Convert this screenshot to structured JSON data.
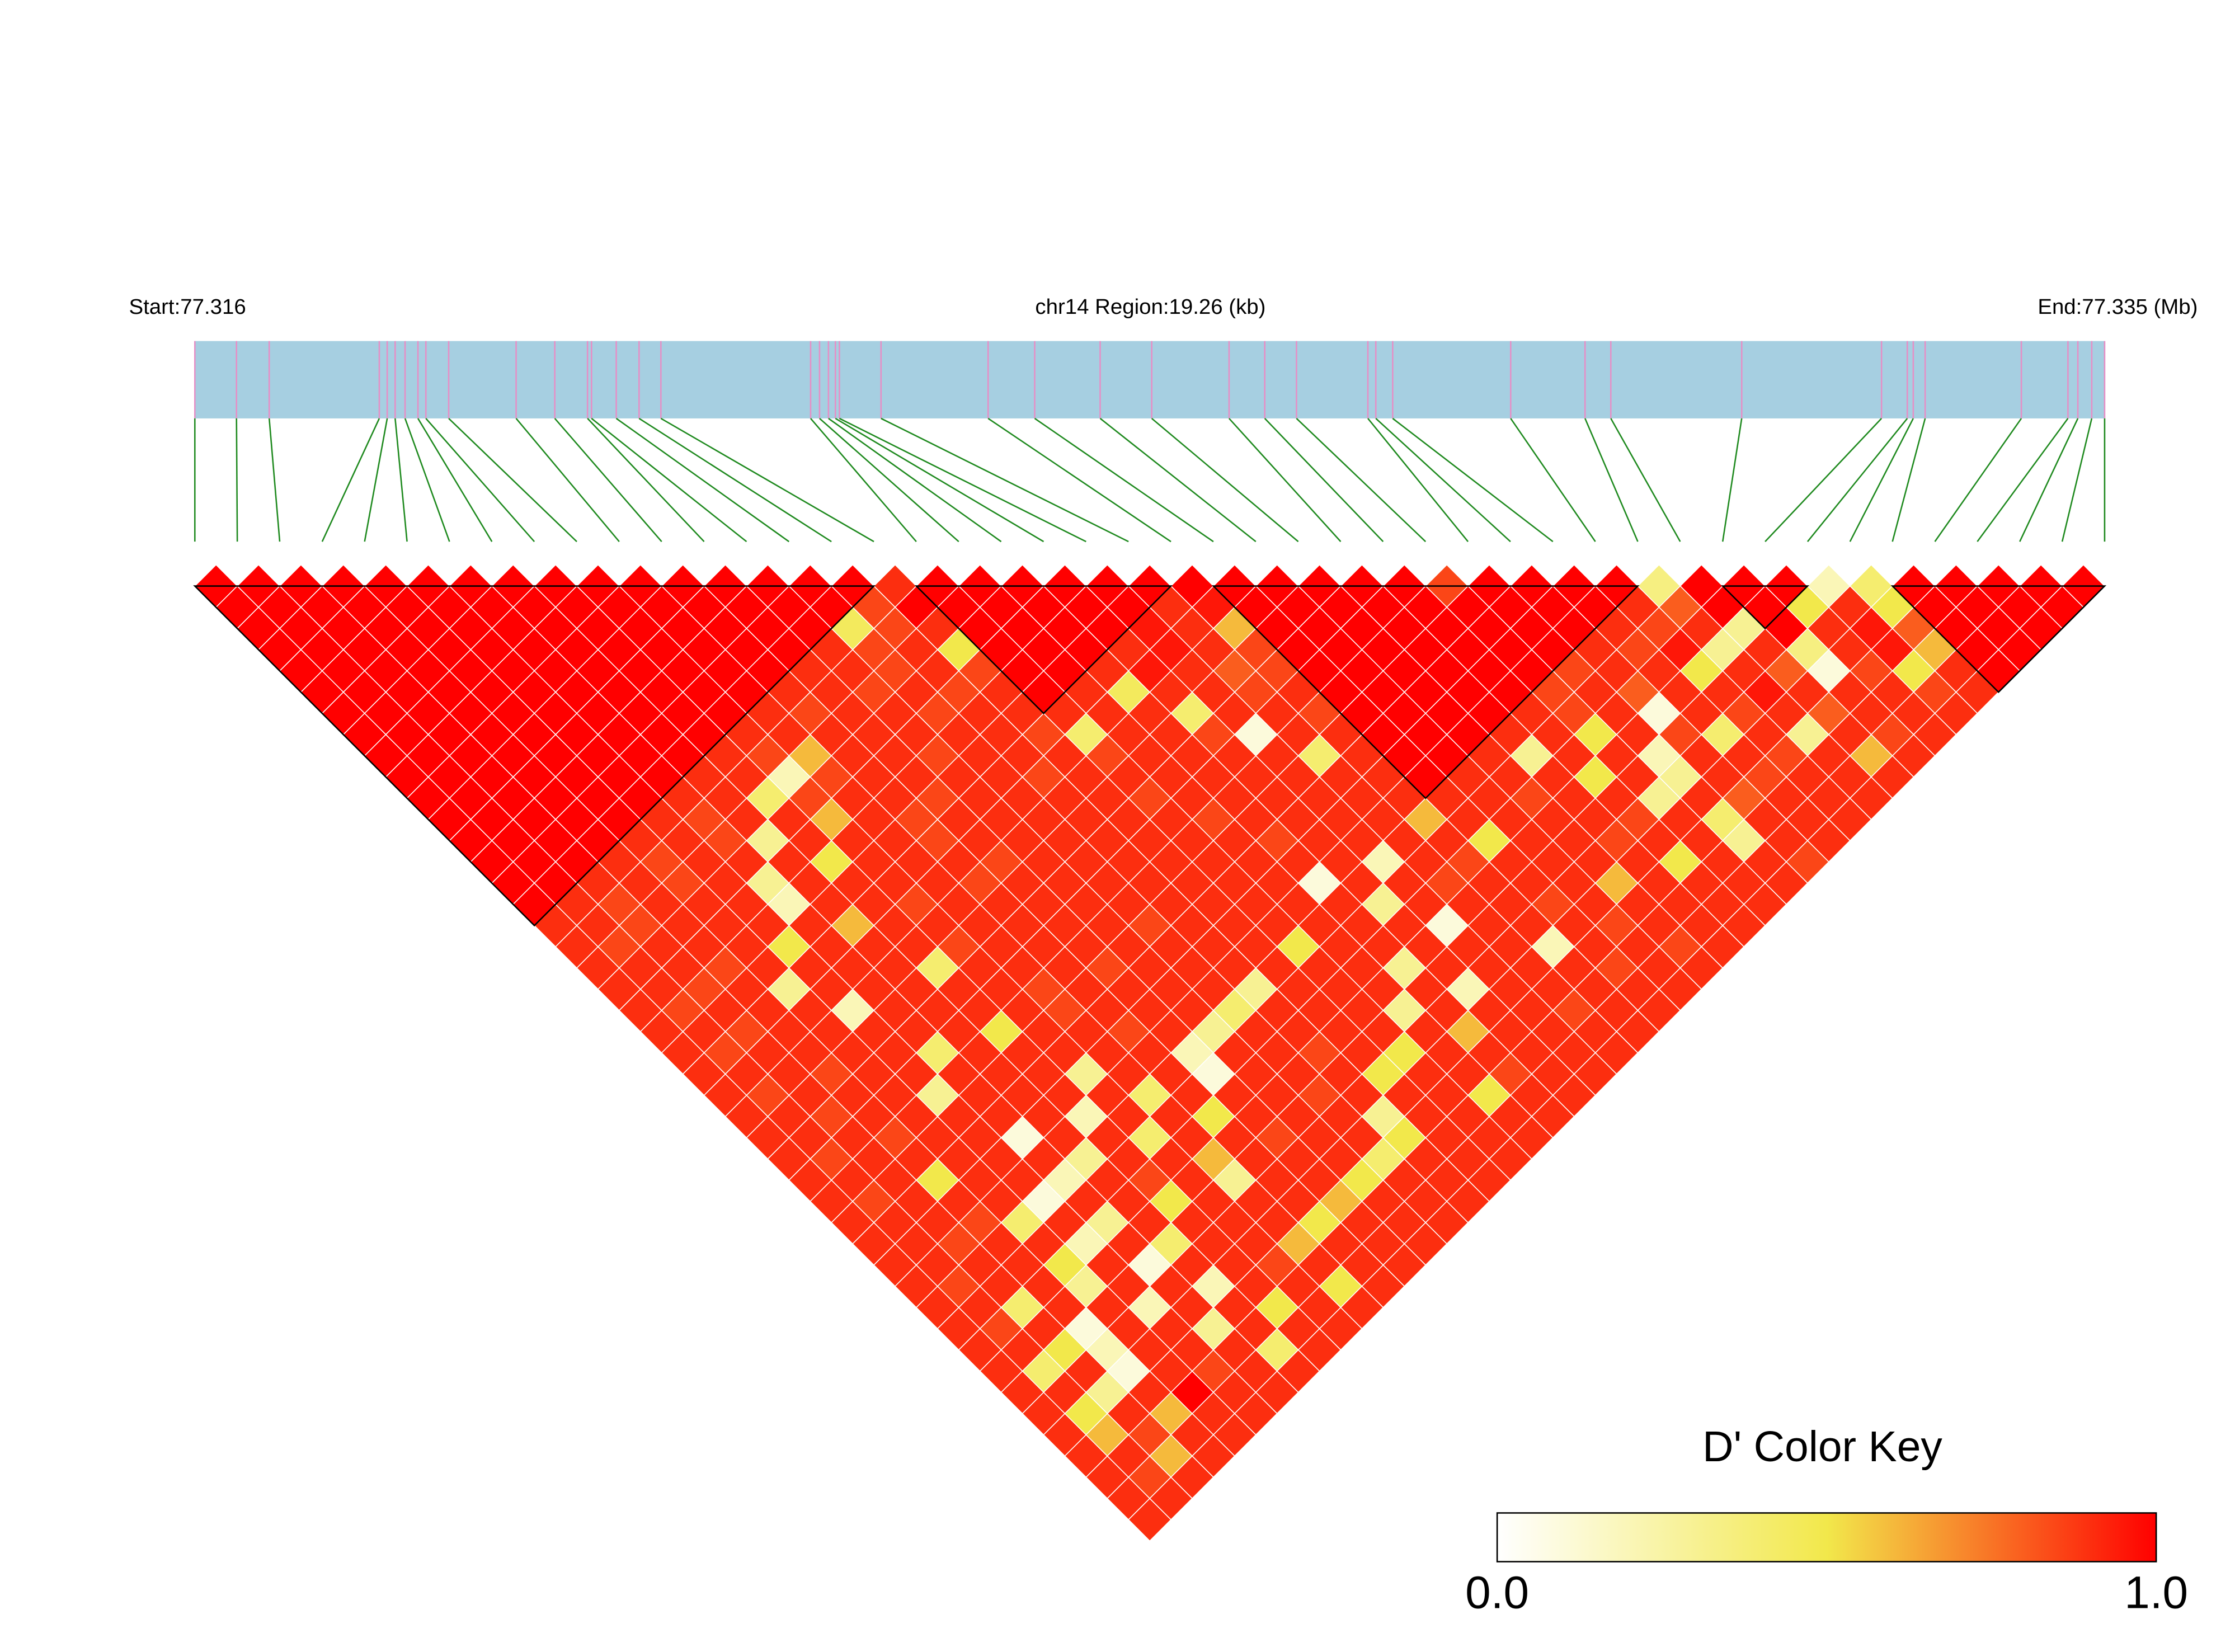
{
  "chart_data": {
    "type": "heatmap",
    "title": "chr14 Region:19.26 (kb)",
    "start_label": "Start:77.316",
    "end_label": "End:77.335 (Mb)",
    "xlim": [
      0,
      19.26
    ],
    "snp_positions_kb": [
      0,
      0.42,
      0.75,
      1.86,
      1.94,
      2.02,
      2.12,
      2.25,
      2.33,
      2.56,
      3.24,
      3.63,
      3.96,
      4.0,
      4.25,
      4.48,
      4.7,
      6.21,
      6.3,
      6.39,
      6.46,
      6.5,
      6.92,
      8.0,
      8.47,
      9.13,
      9.65,
      10.43,
      10.79,
      11.11,
      11.83,
      11.91,
      12.08,
      13.27,
      14.02,
      14.28,
      15.6,
      17.01,
      17.27,
      17.33,
      17.45,
      18.42,
      18.89,
      18.99,
      19.13,
      19.26
    ],
    "ld_rows": [
      [
        1,
        1,
        1,
        1,
        1,
        1,
        1,
        1,
        1,
        1,
        1,
        1,
        1,
        1,
        1,
        1,
        0.9,
        1,
        1,
        1,
        1,
        1,
        1,
        1,
        1,
        1,
        1,
        1,
        1,
        0.85,
        1,
        1,
        1,
        1,
        0.35,
        1,
        1,
        1,
        0.2,
        0.4,
        1,
        1,
        1,
        1,
        1
      ],
      [
        1,
        1,
        1,
        1,
        1,
        1,
        1,
        1,
        1,
        1,
        1,
        1,
        1,
        1,
        1,
        0.85,
        1,
        1,
        1,
        1,
        1,
        1,
        0.9,
        0.95,
        1,
        1,
        1,
        1,
        1,
        1,
        1,
        1,
        1,
        0.9,
        0.8,
        1,
        1,
        0.5,
        0.9,
        0.5,
        1,
        1,
        1,
        1
      ],
      [
        1,
        1,
        1,
        1,
        1,
        1,
        1,
        1,
        1,
        1,
        1,
        1,
        1,
        1,
        0.45,
        0.85,
        0.9,
        1,
        1,
        1,
        1,
        0.95,
        0.9,
        0.6,
        1,
        1,
        1,
        1,
        1,
        1,
        1,
        1,
        0.9,
        0.85,
        0.9,
        0.3,
        1,
        0.9,
        0.95,
        0.8,
        1,
        1,
        1
      ],
      [
        1,
        1,
        1,
        1,
        1,
        1,
        1,
        1,
        1,
        1,
        1,
        1,
        1,
        0.9,
        0.85,
        0.9,
        0.5,
        1,
        1,
        1,
        0.9,
        0.95,
        0.9,
        0.85,
        1,
        1,
        1,
        1,
        1,
        1,
        1,
        0.9,
        0.85,
        0.95,
        0.3,
        0.9,
        0.35,
        0.9,
        0.95,
        0.6,
        1,
        1
      ],
      [
        1,
        1,
        1,
        1,
        1,
        1,
        1,
        1,
        1,
        1,
        1,
        1,
        0.9,
        0.9,
        0.85,
        0.9,
        0.85,
        1,
        1,
        0.9,
        0.95,
        0.9,
        0.8,
        0.85,
        1,
        1,
        1,
        1,
        1,
        1,
        0.85,
        0.9,
        0.9,
        0.5,
        0.9,
        0.8,
        0.1,
        0.85,
        0.5,
        0.9,
        1
      ],
      [
        1,
        1,
        1,
        1,
        1,
        1,
        1,
        1,
        1,
        1,
        1,
        0.9,
        0.9,
        0.85,
        0.9,
        0.85,
        0.9,
        1,
        0.9,
        0.45,
        0.9,
        0.9,
        0.85,
        0.9,
        1,
        1,
        1,
        1,
        1,
        0.85,
        0.9,
        0.8,
        0.9,
        0.9,
        0.95,
        0.9,
        0.9,
        0.9,
        0.85,
        0.9
      ],
      [
        1,
        1,
        1,
        1,
        1,
        1,
        1,
        1,
        1,
        1,
        0.9,
        0.85,
        0.9,
        0.9,
        0.85,
        0.9,
        0.9,
        0.9,
        0.9,
        0.9,
        0.4,
        0.9,
        0.9,
        0.85,
        1,
        1,
        1,
        1,
        0.9,
        0.85,
        0.9,
        0.1,
        0.9,
        0.85,
        0.9,
        0.8,
        0.9,
        0.9,
        0.9
      ],
      [
        1,
        1,
        1,
        1,
        1,
        1,
        1,
        1,
        1,
        0.9,
        0.9,
        0.9,
        0.9,
        0.9,
        0.9,
        0.9,
        0.85,
        0.4,
        0.9,
        0.9,
        0.85,
        0.1,
        0.9,
        0.9,
        1,
        1,
        1,
        0.9,
        0.9,
        0.5,
        0.9,
        0.85,
        0.4,
        0.9,
        0.3,
        0.9,
        0.85,
        0.9
      ],
      [
        1,
        1,
        1,
        1,
        1,
        1,
        1,
        1,
        0.9,
        0.85,
        0.6,
        0.9,
        0.9,
        0.85,
        0.9,
        0.9,
        0.9,
        0.85,
        0.9,
        0.9,
        0.9,
        0.9,
        0.4,
        0.9,
        1,
        1,
        0.9,
        0.3,
        0.9,
        0.9,
        0.2,
        0.9,
        0.9,
        0.85,
        0.9,
        0.6,
        0.9
      ],
      [
        1,
        1,
        1,
        1,
        1,
        1,
        1,
        0.9,
        0.9,
        0.2,
        0.85,
        0.9,
        0.9,
        0.9,
        0.9,
        0.85,
        0.9,
        0.9,
        0.9,
        0.9,
        0.9,
        0.9,
        0.9,
        0.9,
        1,
        0.9,
        0.9,
        0.9,
        0.5,
        0.9,
        0.3,
        0.9,
        0.85,
        0.9,
        0.9,
        0.9
      ],
      [
        1,
        1,
        1,
        1,
        1,
        1,
        0.9,
        0.9,
        0.4,
        0.85,
        0.9,
        0.9,
        0.85,
        0.9,
        0.9,
        0.9,
        0.9,
        0.85,
        0.9,
        0.9,
        0.9,
        0.9,
        0.9,
        0.9,
        0.9,
        0.9,
        0.85,
        0.9,
        0.9,
        0.3,
        0.9,
        0.8,
        0.9,
        0.9,
        0.9
      ],
      [
        1,
        1,
        1,
        1,
        1,
        0.9,
        0.85,
        0.9,
        0.9,
        0.6,
        0.9,
        0.85,
        0.9,
        0.9,
        0.9,
        0.9,
        0.9,
        0.9,
        0.85,
        0.9,
        0.9,
        0.9,
        0.9,
        0.6,
        0.9,
        0.9,
        0.9,
        0.9,
        0.85,
        0.9,
        0.4,
        0.9,
        0.9,
        0.9
      ],
      [
        1,
        1,
        1,
        1,
        0.9,
        0.9,
        0.85,
        0.3,
        0.9,
        0.9,
        0.9,
        0.85,
        0.9,
        0.9,
        0.9,
        0.9,
        0.9,
        0.9,
        0.9,
        0.85,
        0.9,
        0.9,
        0.9,
        0.9,
        0.5,
        0.9,
        0.9,
        0.85,
        0.9,
        0.9,
        0.3,
        0.9,
        0.9
      ],
      [
        1,
        1,
        1,
        0.9,
        0.85,
        0.9,
        0.9,
        0.9,
        0.5,
        0.9,
        0.9,
        0.9,
        0.85,
        0.9,
        0.9,
        0.9,
        0.9,
        0.9,
        0.9,
        0.9,
        0.9,
        0.2,
        0.9,
        0.85,
        0.9,
        0.9,
        0.9,
        0.9,
        0.5,
        0.9,
        0.9,
        0.85
      ],
      [
        1,
        1,
        0.9,
        0.9,
        0.85,
        0.9,
        0.3,
        0.9,
        0.9,
        0.9,
        0.9,
        0.85,
        0.9,
        0.9,
        0.9,
        0.9,
        0.9,
        0.9,
        0.9,
        0.1,
        0.9,
        0.9,
        0.85,
        0.9,
        0.9,
        0.9,
        0.6,
        0.9,
        0.9,
        0.9,
        0.9
      ],
      [
        1,
        0.9,
        0.85,
        0.9,
        0.9,
        0.9,
        0.2,
        0.9,
        0.9,
        0.85,
        0.9,
        0.9,
        0.9,
        0.9,
        0.9,
        0.9,
        0.9,
        0.9,
        0.9,
        0.9,
        0.3,
        0.9,
        0.9,
        0.9,
        0.85,
        0.9,
        0.9,
        0.9,
        0.9,
        0.9
      ],
      [
        0.9,
        0.9,
        0.85,
        0.9,
        0.9,
        0.9,
        0.9,
        0.6,
        0.9,
        0.9,
        0.9,
        0.9,
        0.9,
        0.9,
        0.85,
        0.9,
        0.9,
        0.9,
        0.9,
        0.9,
        0.9,
        0.1,
        0.9,
        0.9,
        0.9,
        0.85,
        0.9,
        0.9,
        0.9
      ],
      [
        0.9,
        0.85,
        0.9,
        0.9,
        0.9,
        0.5,
        0.9,
        0.9,
        0.9,
        0.85,
        0.9,
        0.9,
        0.9,
        0.9,
        0.9,
        0.9,
        0.9,
        0.5,
        0.9,
        0.9,
        0.9,
        0.9,
        0.9,
        0.2,
        0.9,
        0.9,
        0.85,
        0.9
      ],
      [
        0.9,
        0.9,
        0.9,
        0.85,
        0.9,
        0.9,
        0.9,
        0.9,
        0.4,
        0.9,
        0.9,
        0.9,
        0.85,
        0.9,
        0.9,
        0.9,
        0.9,
        0.9,
        0.9,
        0.3,
        0.9,
        0.9,
        0.9,
        0.9,
        0.85,
        0.9,
        0.9
      ],
      [
        0.9,
        0.9,
        0.85,
        0.9,
        0.3,
        0.9,
        0.9,
        0.9,
        0.9,
        0.9,
        0.85,
        0.9,
        0.9,
        0.9,
        0.9,
        0.3,
        0.9,
        0.9,
        0.9,
        0.9,
        0.2,
        0.9,
        0.9,
        0.9,
        0.9,
        0.9
      ],
      [
        0.9,
        0.85,
        0.9,
        0.9,
        0.9,
        0.2,
        0.9,
        0.9,
        0.9,
        0.9,
        0.85,
        0.9,
        0.9,
        0.9,
        0.4,
        0.9,
        0.9,
        0.9,
        0.3,
        0.9,
        0.9,
        0.9,
        0.85,
        0.9,
        0.9
      ],
      [
        0.9,
        0.9,
        0.85,
        0.9,
        0.9,
        0.9,
        0.9,
        0.9,
        0.5,
        0.9,
        0.9,
        0.85,
        0.9,
        0.3,
        0.9,
        0.9,
        0.9,
        0.9,
        0.9,
        0.6,
        0.9,
        0.9,
        0.9,
        0.9
      ],
      [
        0.9,
        0.85,
        0.9,
        0.9,
        0.9,
        0.9,
        0.4,
        0.9,
        0.9,
        0.9,
        0.9,
        0.9,
        0.2,
        0.9,
        0.9,
        0.85,
        0.9,
        0.5,
        0.9,
        0.9,
        0.9,
        0.9,
        0.9
      ],
      [
        0.9,
        0.9,
        0.9,
        0.85,
        0.9,
        0.9,
        0.9,
        0.9,
        0.9,
        0.3,
        0.9,
        0.9,
        0.1,
        0.9,
        0.9,
        0.9,
        0.5,
        0.9,
        0.9,
        0.85,
        0.9,
        0.9
      ],
      [
        0.9,
        0.85,
        0.9,
        0.9,
        0.9,
        0.3,
        0.9,
        0.9,
        0.9,
        0.9,
        0.4,
        0.9,
        0.9,
        0.9,
        0.85,
        0.9,
        0.9,
        0.9,
        0.5,
        0.9,
        0.9
      ],
      [
        0.9,
        0.9,
        0.85,
        0.9,
        0.9,
        0.9,
        0.9,
        0.9,
        0.2,
        0.9,
        0.9,
        0.5,
        0.9,
        0.9,
        0.9,
        0.3,
        0.9,
        0.9,
        0.9,
        0.9
      ],
      [
        0.9,
        0.9,
        0.9,
        0.85,
        0.9,
        0.9,
        0.1,
        0.9,
        0.9,
        0.4,
        0.9,
        0.9,
        0.85,
        0.9,
        0.9,
        0.5,
        0.9,
        0.9,
        0.9
      ],
      [
        0.9,
        0.85,
        0.9,
        0.9,
        0.9,
        0.9,
        0.9,
        0.3,
        0.9,
        0.9,
        0.6,
        0.9,
        0.9,
        0.9,
        0.4,
        0.9,
        0.9,
        0.9
      ],
      [
        0.9,
        0.9,
        0.9,
        0.5,
        0.9,
        0.9,
        0.2,
        0.9,
        0.85,
        0.9,
        0.3,
        0.9,
        0.9,
        0.5,
        0.9,
        0.9,
        0.9
      ],
      [
        0.9,
        0.85,
        0.9,
        0.9,
        0.9,
        0.1,
        0.9,
        0.9,
        0.5,
        0.9,
        0.9,
        0.9,
        0.6,
        0.9,
        0.9,
        0.9
      ],
      [
        0.9,
        0.9,
        0.9,
        0.85,
        0.4,
        0.9,
        0.3,
        0.9,
        0.9,
        0.9,
        0.9,
        0.5,
        0.9,
        0.9,
        0.9
      ],
      [
        0.9,
        0.9,
        0.85,
        0.9,
        0.9,
        0.2,
        0.9,
        0.4,
        0.9,
        0.9,
        0.6,
        0.9,
        0.9,
        0.9
      ],
      [
        0.9,
        0.9,
        0.9,
        0.9,
        0.5,
        0.9,
        0.1,
        0.9,
        0.9,
        0.85,
        0.9,
        0.9,
        0.9
      ],
      [
        0.9,
        0.85,
        0.9,
        0.9,
        0.3,
        0.9,
        0.9,
        0.2,
        0.9,
        0.9,
        0.5,
        0.9
      ],
      [
        0.9,
        0.9,
        0.4,
        0.9,
        0.9,
        0.2,
        0.9,
        0.9,
        0.5,
        0.9,
        0.9
      ],
      [
        0.9,
        0.85,
        0.9,
        0.1,
        0.9,
        0.9,
        0.3,
        0.9,
        0.9,
        0.9
      ],
      [
        0.9,
        0.9,
        0.5,
        0.2,
        0.9,
        0.9,
        0.9,
        0.4,
        0.9
      ],
      [
        0.9,
        0.4,
        0.9,
        0.1,
        0.9,
        0.85,
        0.9,
        0.9
      ],
      [
        0.9,
        0.9,
        0.3,
        0.9,
        1,
        0.9,
        0.9
      ],
      [
        0.9,
        0.5,
        0.9,
        0.6,
        0.9,
        0.9
      ],
      [
        0.9,
        0.6,
        0.85,
        0.9,
        0.9
      ],
      [
        0.9,
        0.9,
        0.6,
        0.9
      ],
      [
        0.9,
        0.85,
        0.9
      ],
      [
        0.9,
        0.9
      ],
      [
        0.9
      ]
    ],
    "blocks": [
      [
        0,
        16
      ],
      [
        17,
        23
      ],
      [
        24,
        34
      ],
      [
        36,
        38
      ],
      [
        40,
        45
      ]
    ],
    "color_key": {
      "title": "D' Color Key",
      "lim": [
        0,
        1
      ],
      "ticks": [
        {
          "value": 0,
          "label": "0.0"
        },
        {
          "value": 1,
          "label": "1.0"
        }
      ],
      "colors": [
        "#ffffff",
        "#f2e84b",
        "#ff0000"
      ]
    }
  }
}
